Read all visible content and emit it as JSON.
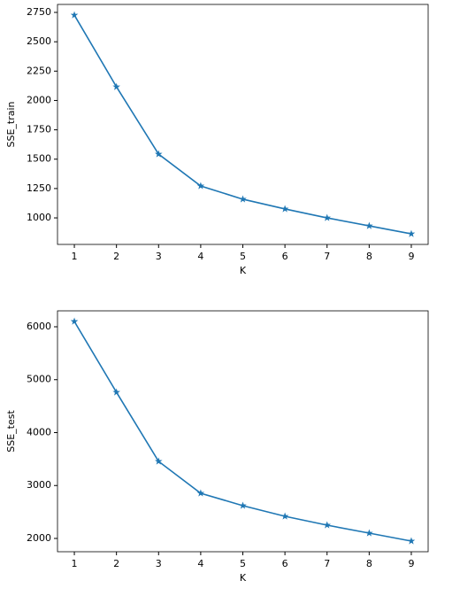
{
  "chart_data": [
    {
      "type": "line",
      "x": [
        1,
        2,
        3,
        4,
        5,
        6,
        7,
        8,
        9
      ],
      "values": [
        2727,
        2116,
        1543,
        1272,
        1159,
        1076,
        1000,
        932,
        864
      ],
      "color": "#1f77b4",
      "marker": "star",
      "xlabel": "K",
      "ylabel": "SSE_train",
      "xlim": [
        0.6,
        9.4
      ],
      "ylim": [
        774,
        2818
      ],
      "xticks": [
        1,
        2,
        3,
        4,
        5,
        6,
        7,
        8,
        9
      ],
      "yticks": [
        1000,
        1250,
        1500,
        1750,
        2000,
        2250,
        2500,
        2750
      ]
    },
    {
      "type": "line",
      "x": [
        1,
        2,
        3,
        4,
        5,
        6,
        7,
        8,
        9
      ],
      "values": [
        6100,
        4762,
        3456,
        2854,
        2619,
        2418,
        2251,
        2100,
        1950
      ],
      "color": "#1f77b4",
      "marker": "star",
      "xlabel": "K",
      "ylabel": "SSE_test",
      "xlim": [
        0.6,
        9.4
      ],
      "ylim": [
        1749,
        6301
      ],
      "xticks": [
        1,
        2,
        3,
        4,
        5,
        6,
        7,
        8,
        9
      ],
      "yticks": [
        2000,
        3000,
        4000,
        5000,
        6000
      ]
    }
  ]
}
